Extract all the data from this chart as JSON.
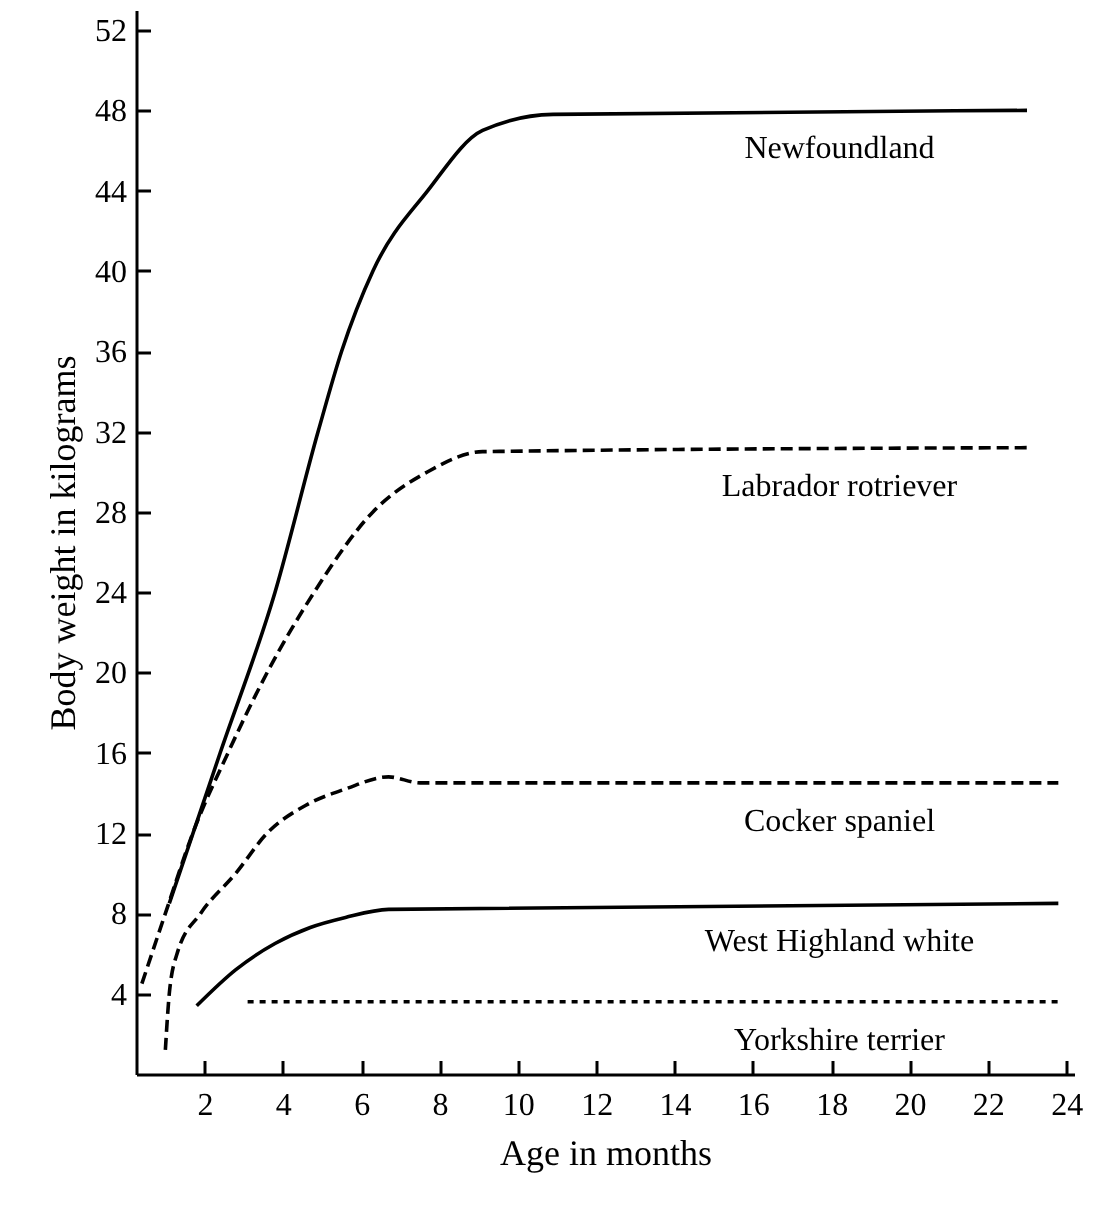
{
  "chart_data": {
    "type": "line",
    "xlabel": "Age in months",
    "ylabel": "Body weight in kilograms",
    "xlim": [
      0.25,
      24.2
    ],
    "ylim": [
      0,
      53
    ],
    "xticks": [
      2,
      4,
      6,
      8,
      10,
      12,
      14,
      16,
      18,
      20,
      22,
      24
    ],
    "yticks": [
      4,
      8,
      12,
      16,
      20,
      24,
      28,
      32,
      36,
      40,
      44,
      48,
      52
    ],
    "grid": false,
    "marker": "none",
    "series": [
      {
        "name": "Newfoundland",
        "color": "#000000",
        "line_style": "solid",
        "x": [
          1.1,
          2.4,
          3.8,
          4.9,
          5.5,
          6.3,
          7.7,
          9.1,
          10.9,
          23
        ],
        "values": [
          8.5,
          16,
          24,
          32,
          36,
          40,
          44,
          47,
          47.8,
          48
        ]
      },
      {
        "name": "Labrador rotriever",
        "color": "#000000",
        "line_style": "dashed",
        "x": [
          0.4,
          1.0,
          1.7,
          2.6,
          3.6,
          4.8,
          6.3,
          7.7,
          9.1,
          23.1
        ],
        "values": [
          4.5,
          8,
          12,
          16,
          20,
          24,
          28,
          30,
          31,
          31.2
        ]
      },
      {
        "name": "Cocker spaniel",
        "color": "#000000",
        "line_style": "dashed",
        "x": [
          1.0,
          1.1,
          1.3,
          1.9,
          2.8,
          3.6,
          4.6,
          5.6,
          6.7,
          7.5,
          23.8
        ],
        "values": [
          1.2,
          4,
          6,
          8,
          10,
          12,
          13.4,
          14.2,
          14.8,
          14.5,
          14.5
        ]
      },
      {
        "name": "West Highland white",
        "color": "#000000",
        "line_style": "solid",
        "x": [
          1.8,
          2.8,
          3.8,
          4.7,
          5.6,
          6.7,
          23.8
        ],
        "values": [
          3.4,
          5.2,
          6.5,
          7.3,
          7.8,
          8.2,
          8.5
        ]
      },
      {
        "name": "Yorkshire terrier",
        "color": "#000000",
        "line_style": "dotted",
        "x": [
          3.1,
          23.8
        ],
        "values": [
          3.6,
          3.6
        ]
      }
    ]
  }
}
